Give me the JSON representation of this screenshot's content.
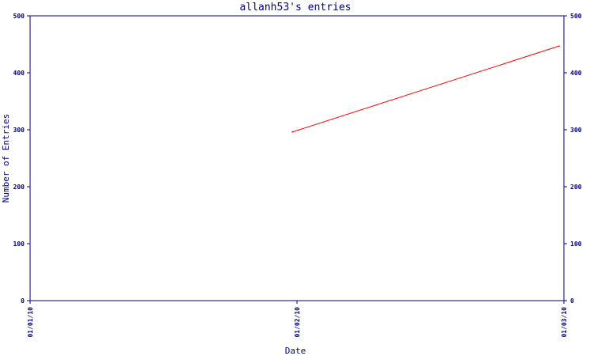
{
  "chart_data": {
    "type": "line",
    "title": "allanh53's entries",
    "xlabel": "Date",
    "ylabel": "Number of Entries",
    "ylim": [
      0,
      500
    ],
    "yticks": [
      0,
      100,
      200,
      300,
      400,
      500
    ],
    "xticks": [
      "01/01/10",
      "01/02/10",
      "01/03/10"
    ],
    "grid": false,
    "colors": {
      "axis": "#000080",
      "text": "#000080",
      "series": "#ff0000"
    },
    "series": [
      {
        "x": [
          "01/02/10",
          "01/03/10"
        ],
        "values": [
          296,
          447
        ]
      }
    ]
  }
}
